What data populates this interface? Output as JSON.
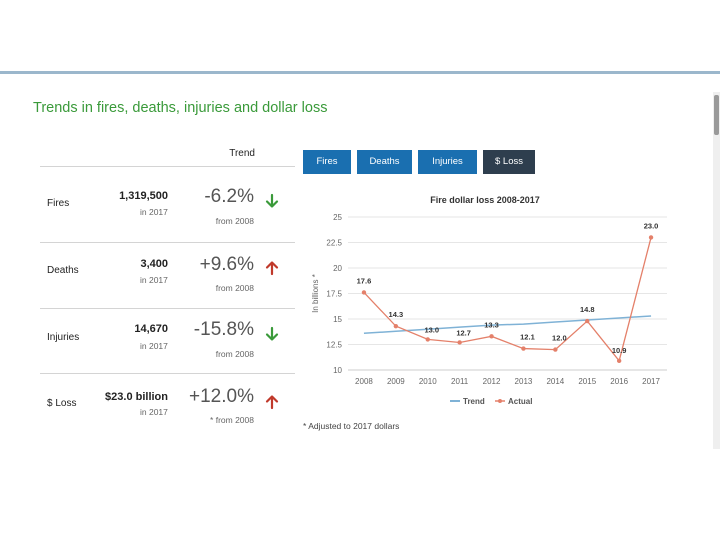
{
  "section_title": "Trends in fires, deaths, injuries and dollar loss",
  "trend_header": "Trend",
  "stats": [
    {
      "label": "Fires",
      "value": "1,319,500",
      "year": "in 2017",
      "pct": "-6.2%",
      "from": "from 2008",
      "direction": "down"
    },
    {
      "label": "Deaths",
      "value": "3,400",
      "year": "in 2017",
      "pct": "+9.6%",
      "from": "from 2008",
      "direction": "up"
    },
    {
      "label": "Injuries",
      "value": "14,670",
      "year": "in 2017",
      "pct": "-15.8%",
      "from": "from 2008",
      "direction": "down"
    },
    {
      "label": "$ Loss",
      "value": "$23.0 billion",
      "year": "in 2017",
      "pct": "+12.0%",
      "from": "* from 2008",
      "direction": "up"
    }
  ],
  "tabs": [
    {
      "label": "Fires",
      "active": false
    },
    {
      "label": "Deaths",
      "active": false
    },
    {
      "label": "Injuries",
      "active": false
    },
    {
      "label": "$ Loss",
      "active": true
    }
  ],
  "colors": {
    "title_green": "#3a9a3a",
    "arrow_down": "#3a9a3a",
    "arrow_up": "#c0392b",
    "tab_blue": "#1a6fb0",
    "tab_active": "#2e3e4e",
    "trend_line": "#7fb2d6",
    "actual_line": "#e4806a"
  },
  "chart_data": {
    "type": "line",
    "title": "Fire dollar loss 2008-2017",
    "ylabel": "In billions *",
    "x": [
      "2008",
      "2009",
      "2010",
      "2011",
      "2012",
      "2013",
      "2014",
      "2015",
      "2016",
      "2017"
    ],
    "ylim": [
      10,
      25
    ],
    "yticks": [
      "10",
      "12.5",
      "15",
      "17.5",
      "20",
      "22.5",
      "25"
    ],
    "grid": true,
    "legend_position": "bottom",
    "series": [
      {
        "name": "Trend",
        "values": [
          13.6,
          13.8,
          14.0,
          14.2,
          14.4,
          14.5,
          14.7,
          14.9,
          15.1,
          15.3
        ]
      },
      {
        "name": "Actual",
        "values": [
          17.6,
          14.3,
          13.0,
          12.7,
          13.3,
          12.1,
          12.0,
          14.8,
          10.9,
          23.0
        ],
        "labels": [
          "17.6",
          "14.3",
          "13.0",
          "12.7",
          "13.3",
          "12.1",
          "12.0",
          "14.8",
          "10.9",
          "23.0"
        ]
      }
    ]
  },
  "footnote": "* Adjusted to 2017 dollars"
}
